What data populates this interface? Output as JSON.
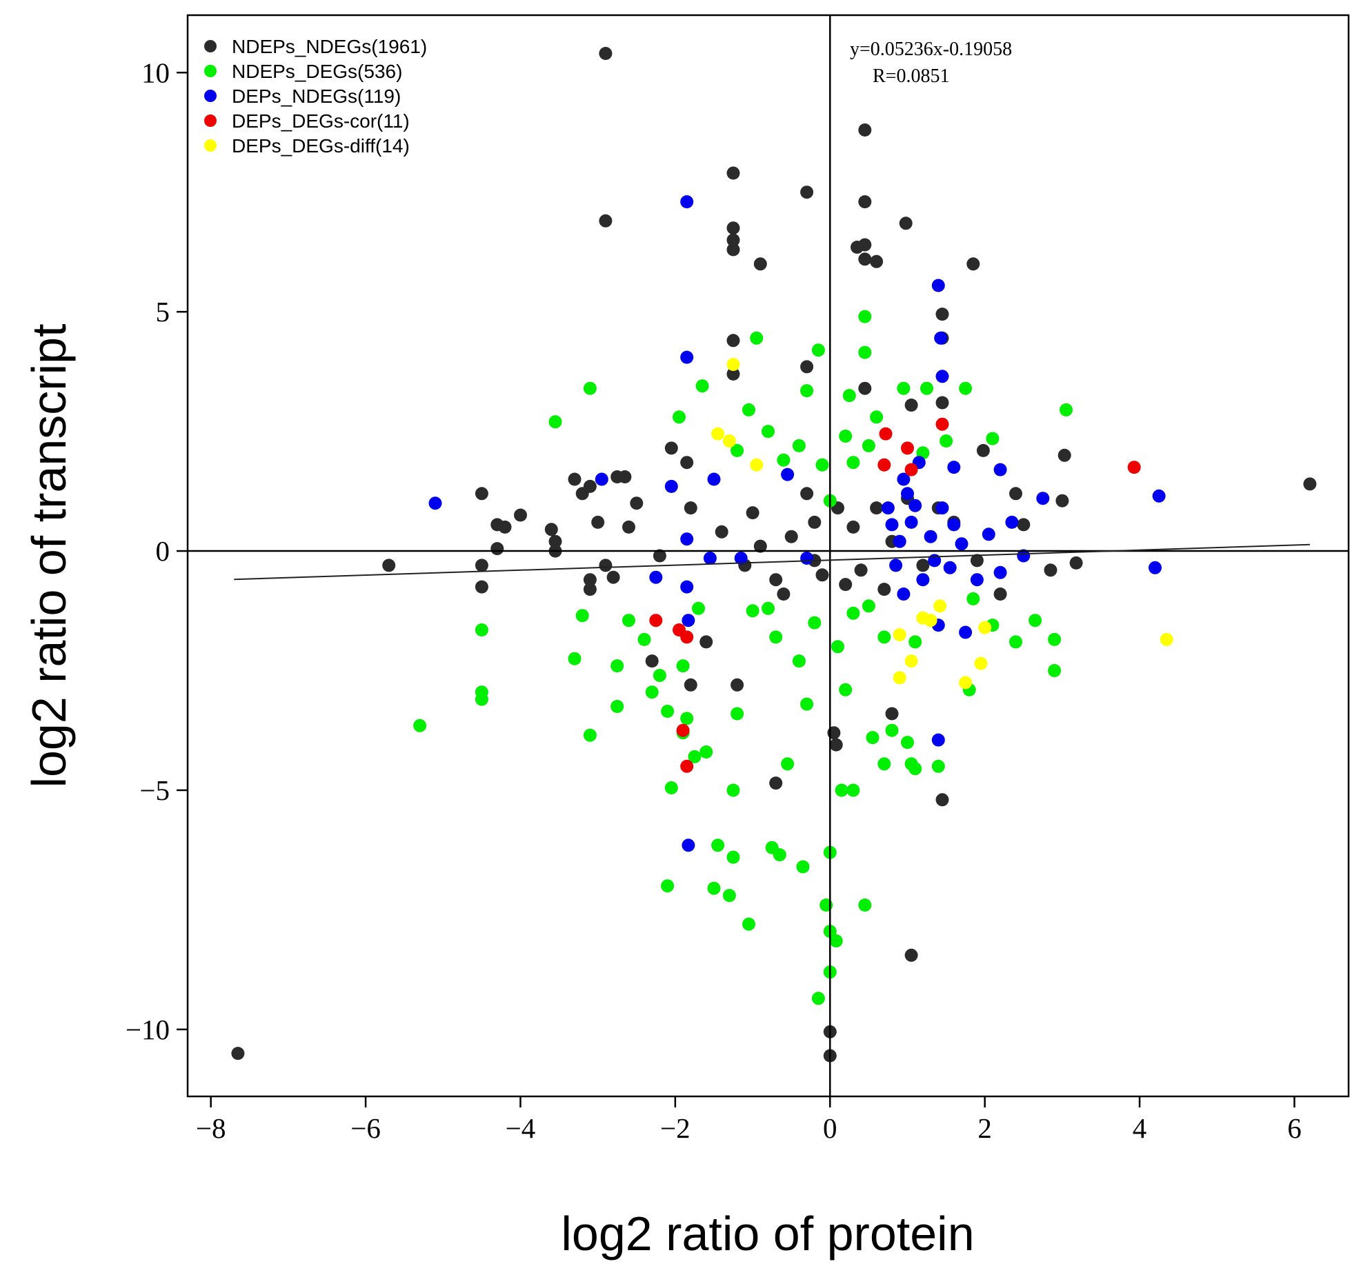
{
  "chart_data": {
    "type": "scatter",
    "title": "",
    "xlabel": "log2 ratio of protein",
    "ylabel": "log2 ratio of transcript",
    "xlim": [
      -8.3,
      6.7
    ],
    "ylim": [
      -11.4,
      11.2
    ],
    "xticks": [
      -8,
      -6,
      -4,
      -2,
      0,
      2,
      4,
      6
    ],
    "yticks": [
      -10,
      -5,
      0,
      5,
      10
    ],
    "tick_labels": {
      "x": [
        "−8",
        "−6",
        "−4",
        "−2",
        "0",
        "2",
        "4",
        "6"
      ],
      "y": [
        "−10",
        "−5",
        "0",
        "5",
        "10"
      ]
    },
    "grid": false,
    "legend_position": "top-left",
    "reference_lines": {
      "x": 0,
      "y": 0
    },
    "fit_line": {
      "slope": 0.05236,
      "intercept": -0.19058,
      "x_range": [
        -7.7,
        6.2
      ]
    },
    "annotation": {
      "equation": "y=0.05236x-0.19058",
      "r_value": "R=0.0851"
    },
    "series": [
      {
        "name": "NDEPs_NDEGs(1961)",
        "color": "#2b2b2b",
        "points": [
          [
            -2.9,
            10.4
          ],
          [
            -7.65,
            -10.5
          ],
          [
            0.45,
            8.8
          ],
          [
            -1.25,
            7.9
          ],
          [
            -0.3,
            7.5
          ],
          [
            0.45,
            7.3
          ],
          [
            -2.9,
            6.9
          ],
          [
            0.98,
            6.85
          ],
          [
            -1.25,
            6.75
          ],
          [
            -1.25,
            6.5
          ],
          [
            -1.25,
            6.3
          ],
          [
            0.35,
            6.35
          ],
          [
            0.45,
            6.4
          ],
          [
            0.45,
            6.1
          ],
          [
            0.6,
            6.05
          ],
          [
            -0.9,
            6.0
          ],
          [
            1.85,
            6.0
          ],
          [
            1.45,
            4.95
          ],
          [
            1.45,
            4.45
          ],
          [
            -1.25,
            4.4
          ],
          [
            0.45,
            3.4
          ],
          [
            1.45,
            3.1
          ],
          [
            1.05,
            3.05
          ],
          [
            -0.3,
            3.85
          ],
          [
            -1.25,
            3.7
          ],
          [
            3.03,
            2.0
          ],
          [
            1.98,
            2.1
          ],
          [
            3.0,
            1.05
          ],
          [
            6.2,
            1.4
          ],
          [
            3.18,
            -0.25
          ],
          [
            2.85,
            -0.4
          ],
          [
            -5.7,
            -0.3
          ],
          [
            -4.5,
            1.2
          ],
          [
            -4.5,
            -0.3
          ],
          [
            -4.5,
            -0.75
          ],
          [
            -4.3,
            0.55
          ],
          [
            -4.2,
            0.5
          ],
          [
            -4.0,
            0.75
          ],
          [
            -4.3,
            0.05
          ],
          [
            -3.6,
            0.45
          ],
          [
            -3.55,
            0.2
          ],
          [
            -3.55,
            0.0
          ],
          [
            -3.3,
            1.5
          ],
          [
            -3.2,
            1.2
          ],
          [
            -3.1,
            1.35
          ],
          [
            -3.0,
            0.6
          ],
          [
            -3.1,
            -0.6
          ],
          [
            -3.1,
            -0.8
          ],
          [
            -2.9,
            -0.3
          ],
          [
            -2.8,
            -0.55
          ],
          [
            -2.75,
            1.55
          ],
          [
            -2.65,
            1.55
          ],
          [
            -2.5,
            1.0
          ],
          [
            -2.6,
            0.5
          ],
          [
            -1.8,
            -2.8
          ],
          [
            -1.2,
            -2.8
          ],
          [
            0.05,
            -3.8
          ],
          [
            0.08,
            -4.05
          ],
          [
            0.8,
            -3.4
          ],
          [
            1.05,
            -8.45
          ],
          [
            1.45,
            -5.2
          ],
          [
            0.0,
            -10.05
          ],
          [
            0.0,
            -10.55
          ],
          [
            -0.7,
            -4.85
          ],
          [
            -2.05,
            2.15
          ],
          [
            -1.85,
            1.85
          ],
          [
            2.5,
            0.55
          ],
          [
            2.4,
            1.2
          ],
          [
            2.2,
            -0.9
          ],
          [
            -2.3,
            -2.3
          ],
          [
            -1.6,
            -1.9
          ],
          [
            -0.1,
            -0.5
          ],
          [
            -0.5,
            0.3
          ],
          [
            0.3,
            0.5
          ],
          [
            -0.2,
            -0.2
          ],
          [
            0.6,
            0.9
          ],
          [
            -1.0,
            0.8
          ],
          [
            1.2,
            -0.3
          ],
          [
            0.2,
            -0.7
          ],
          [
            -0.7,
            -0.6
          ],
          [
            0.8,
            0.2
          ],
          [
            -1.4,
            0.4
          ],
          [
            1.6,
            0.6
          ],
          [
            -0.3,
            1.2
          ],
          [
            0.4,
            -0.4
          ],
          [
            -0.9,
            0.1
          ],
          [
            1.0,
            1.1
          ],
          [
            -1.8,
            0.9
          ],
          [
            1.9,
            -0.2
          ],
          [
            -2.2,
            -0.1
          ],
          [
            0.1,
            0.9
          ],
          [
            -0.6,
            -0.9
          ],
          [
            1.4,
            0.9
          ],
          [
            -1.1,
            -0.3
          ],
          [
            0.7,
            -0.8
          ],
          [
            -0.2,
            0.6
          ]
        ]
      },
      {
        "name": "NDEPs_DEGs(536)",
        "color": "#00ee00",
        "points": [
          [
            -5.3,
            -3.65
          ],
          [
            -4.5,
            -1.65
          ],
          [
            -4.5,
            -2.95
          ],
          [
            -4.5,
            -3.1
          ],
          [
            -3.55,
            2.7
          ],
          [
            -3.1,
            3.4
          ],
          [
            -3.1,
            -3.85
          ],
          [
            -3.2,
            -1.35
          ],
          [
            -3.3,
            -2.25
          ],
          [
            -2.75,
            -2.4
          ],
          [
            -2.75,
            -3.25
          ],
          [
            -2.6,
            -1.45
          ],
          [
            -2.4,
            -1.85
          ],
          [
            -2.3,
            -2.95
          ],
          [
            -2.2,
            -2.6
          ],
          [
            -2.1,
            -3.35
          ],
          [
            -2.05,
            -4.95
          ],
          [
            -2.1,
            -7.0
          ],
          [
            -1.9,
            -2.4
          ],
          [
            -1.85,
            -3.5
          ],
          [
            -1.9,
            -3.8
          ],
          [
            -1.75,
            -4.3
          ],
          [
            -1.6,
            -4.2
          ],
          [
            -1.7,
            -1.2
          ],
          [
            -1.45,
            -6.15
          ],
          [
            -1.25,
            -6.4
          ],
          [
            -1.5,
            -7.05
          ],
          [
            -1.3,
            -7.2
          ],
          [
            -1.05,
            -7.8
          ],
          [
            -1.25,
            -5.0
          ],
          [
            -1.2,
            -3.4
          ],
          [
            -0.75,
            -6.2
          ],
          [
            -0.65,
            -6.35
          ],
          [
            -0.35,
            -6.6
          ],
          [
            -0.55,
            -4.45
          ],
          [
            0.0,
            -6.3
          ],
          [
            -0.05,
            -7.4
          ],
          [
            0.0,
            -7.95
          ],
          [
            0.08,
            -8.15
          ],
          [
            0.0,
            -8.8
          ],
          [
            -0.15,
            -9.35
          ],
          [
            0.45,
            -7.4
          ],
          [
            0.3,
            -5.0
          ],
          [
            0.15,
            -5.0
          ],
          [
            0.7,
            -4.45
          ],
          [
            0.55,
            -3.9
          ],
          [
            0.8,
            -3.75
          ],
          [
            1.0,
            -4.0
          ],
          [
            1.05,
            -4.45
          ],
          [
            1.1,
            -4.55
          ],
          [
            1.4,
            -4.5
          ],
          [
            1.1,
            -1.9
          ],
          [
            1.8,
            -2.9
          ],
          [
            2.9,
            -1.85
          ],
          [
            2.9,
            -2.5
          ],
          [
            2.4,
            -1.9
          ],
          [
            2.65,
            -1.45
          ],
          [
            2.1,
            -1.55
          ],
          [
            1.85,
            -1.0
          ],
          [
            1.75,
            3.4
          ],
          [
            2.1,
            2.35
          ],
          [
            3.05,
            2.95
          ],
          [
            1.25,
            3.4
          ],
          [
            0.95,
            3.4
          ],
          [
            0.45,
            4.15
          ],
          [
            0.45,
            4.9
          ],
          [
            -0.15,
            4.2
          ],
          [
            -0.95,
            4.45
          ],
          [
            -1.65,
            3.45
          ],
          [
            -1.95,
            2.8
          ],
          [
            -1.05,
            2.95
          ],
          [
            -0.3,
            3.35
          ],
          [
            0.25,
            3.25
          ],
          [
            0.6,
            2.8
          ],
          [
            1.5,
            2.3
          ],
          [
            -0.8,
            2.5
          ],
          [
            0.2,
            2.4
          ],
          [
            -0.4,
            2.2
          ],
          [
            0.5,
            2.2
          ],
          [
            -1.2,
            2.1
          ],
          [
            1.2,
            2.05
          ],
          [
            -0.1,
            1.8
          ],
          [
            0.3,
            1.85
          ],
          [
            -0.6,
            1.9
          ],
          [
            0.0,
            1.05
          ],
          [
            -0.8,
            -1.2
          ],
          [
            0.3,
            -1.3
          ],
          [
            -0.2,
            -1.5
          ],
          [
            0.5,
            -1.15
          ],
          [
            -1.0,
            -1.25
          ],
          [
            0.1,
            -2.0
          ],
          [
            -0.4,
            -2.3
          ],
          [
            0.7,
            -1.8
          ],
          [
            -0.7,
            -1.8
          ],
          [
            0.2,
            -2.9
          ],
          [
            -0.3,
            -3.2
          ]
        ]
      },
      {
        "name": "DEPs_NDEGs(119)",
        "color": "#0000ee",
        "points": [
          [
            -1.85,
            7.3
          ],
          [
            -5.1,
            1.0
          ],
          [
            -2.95,
            1.5
          ],
          [
            -1.85,
            4.05
          ],
          [
            1.4,
            5.55
          ],
          [
            1.43,
            4.45
          ],
          [
            1.45,
            3.65
          ],
          [
            -2.25,
            -0.55
          ],
          [
            -1.83,
            -1.45
          ],
          [
            -1.83,
            -6.15
          ],
          [
            1.4,
            -3.95
          ],
          [
            1.4,
            -1.55
          ],
          [
            4.25,
            1.15
          ],
          [
            4.2,
            -0.35
          ],
          [
            2.75,
            1.1
          ],
          [
            2.2,
            1.7
          ],
          [
            2.35,
            0.6
          ],
          [
            2.5,
            -0.1
          ],
          [
            2.2,
            -0.45
          ],
          [
            1.75,
            -1.7
          ],
          [
            1.6,
            1.75
          ],
          [
            1.6,
            0.55
          ],
          [
            1.55,
            -0.35
          ],
          [
            1.15,
            1.85
          ],
          [
            1.0,
            1.2
          ],
          [
            1.05,
            0.6
          ],
          [
            0.9,
            0.2
          ],
          [
            0.75,
            0.9
          ],
          [
            0.85,
            -0.3
          ],
          [
            1.2,
            -0.6
          ],
          [
            1.3,
            0.3
          ],
          [
            1.45,
            0.9
          ],
          [
            1.7,
            0.15
          ],
          [
            1.9,
            -0.6
          ],
          [
            2.05,
            0.35
          ],
          [
            0.95,
            -0.9
          ],
          [
            1.1,
            0.95
          ],
          [
            1.35,
            -0.2
          ],
          [
            0.8,
            0.55
          ],
          [
            0.95,
            1.5
          ],
          [
            -2.05,
            1.35
          ],
          [
            -1.85,
            0.25
          ],
          [
            -1.5,
            1.5
          ],
          [
            -0.55,
            1.6
          ],
          [
            -1.55,
            -0.15
          ],
          [
            -0.3,
            -0.15
          ],
          [
            -1.15,
            -0.15
          ],
          [
            -1.85,
            -0.75
          ]
        ]
      },
      {
        "name": "DEPs_DEGs-cor(11)",
        "color": "#ee0000",
        "points": [
          [
            3.93,
            1.75
          ],
          [
            1.45,
            2.65
          ],
          [
            0.72,
            2.45
          ],
          [
            1.0,
            2.15
          ],
          [
            0.7,
            1.8
          ],
          [
            1.05,
            1.7
          ],
          [
            -2.25,
            -1.45
          ],
          [
            -1.95,
            -1.65
          ],
          [
            -1.85,
            -1.8
          ],
          [
            -1.9,
            -3.75
          ],
          [
            -1.85,
            -4.5
          ]
        ]
      },
      {
        "name": "DEPs_DEGs-diff(14)",
        "color": "#ffff00",
        "points": [
          [
            -1.25,
            3.9
          ],
          [
            -1.45,
            2.45
          ],
          [
            -1.3,
            2.3
          ],
          [
            -0.95,
            1.8
          ],
          [
            4.35,
            -1.85
          ],
          [
            1.42,
            -1.15
          ],
          [
            1.2,
            -1.4
          ],
          [
            1.3,
            -1.45
          ],
          [
            2.0,
            -1.6
          ],
          [
            1.05,
            -2.3
          ],
          [
            1.95,
            -2.35
          ],
          [
            0.9,
            -1.75
          ],
          [
            0.9,
            -2.65
          ],
          [
            1.75,
            -2.75
          ]
        ]
      }
    ]
  }
}
